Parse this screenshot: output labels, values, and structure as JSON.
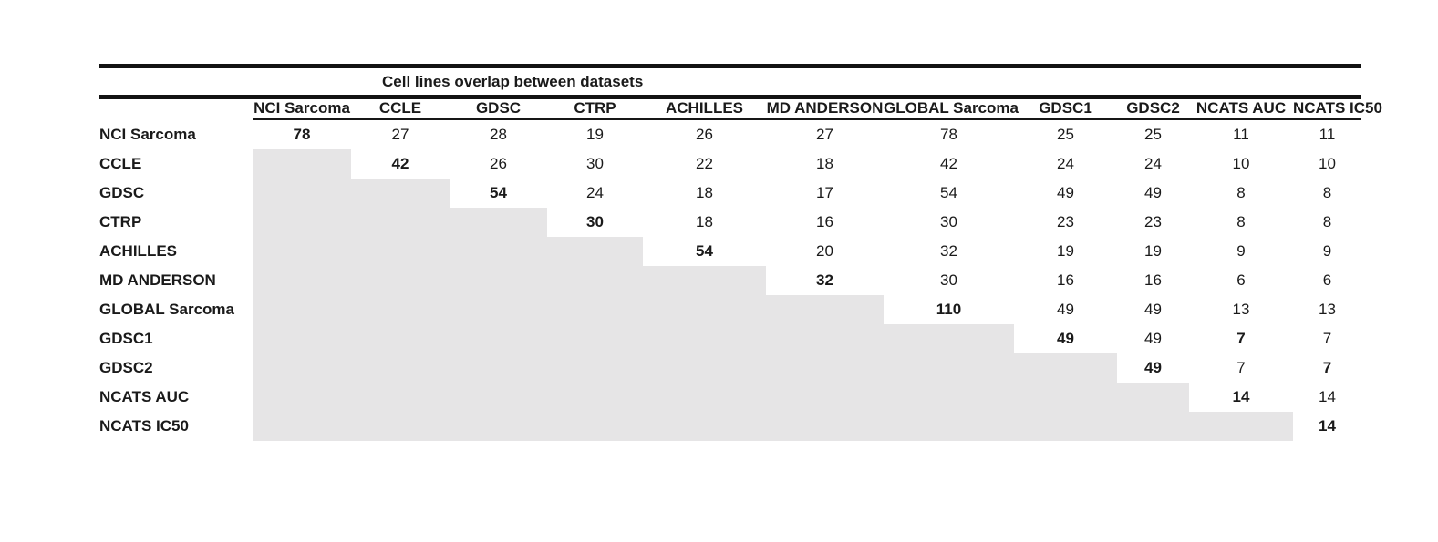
{
  "page": {
    "background_color": "#ffffff",
    "text_color": "#1a1a1a",
    "rule_color": "#121212",
    "empty_cell_color": "#e6e5e6"
  },
  "chart_data": {
    "type": "table",
    "title": "Cell lines overlap between datasets",
    "legend_position": "none",
    "grid": false,
    "columns": [
      "NCI Sarcoma",
      "CCLE",
      "GDSC",
      "CTRP",
      "ACHILLES",
      "MD ANDERSON",
      "GLOBAL Sarcoma",
      "GDSC1",
      "GDSC2",
      "NCATS AUC",
      "NCATS IC50"
    ],
    "rows": [
      {
        "label": "NCI Sarcoma",
        "values": [
          78,
          27,
          28,
          19,
          26,
          27,
          78,
          25,
          25,
          11,
          11
        ],
        "bold_cols": [
          0
        ]
      },
      {
        "label": "CCLE",
        "values": [
          null,
          42,
          26,
          30,
          22,
          18,
          42,
          24,
          24,
          10,
          10
        ],
        "bold_cols": [
          1
        ]
      },
      {
        "label": "GDSC",
        "values": [
          null,
          null,
          54,
          24,
          18,
          17,
          54,
          49,
          49,
          8,
          8
        ],
        "bold_cols": [
          2
        ]
      },
      {
        "label": "CTRP",
        "values": [
          null,
          null,
          null,
          30,
          18,
          16,
          30,
          23,
          23,
          8,
          8
        ],
        "bold_cols": [
          3
        ]
      },
      {
        "label": "ACHILLES",
        "values": [
          null,
          null,
          null,
          null,
          54,
          20,
          32,
          19,
          19,
          9,
          9
        ],
        "bold_cols": [
          4
        ]
      },
      {
        "label": "MD ANDERSON",
        "values": [
          null,
          null,
          null,
          null,
          null,
          32,
          30,
          16,
          16,
          6,
          6
        ],
        "bold_cols": [
          5
        ]
      },
      {
        "label": "GLOBAL Sarcoma",
        "values": [
          null,
          null,
          null,
          null,
          null,
          null,
          110,
          49,
          49,
          13,
          13
        ],
        "bold_cols": [
          6
        ]
      },
      {
        "label": "GDSC1",
        "values": [
          null,
          null,
          null,
          null,
          null,
          null,
          null,
          49,
          49,
          7,
          7
        ],
        "bold_cols": [
          7,
          9
        ]
      },
      {
        "label": "GDSC2",
        "values": [
          null,
          null,
          null,
          null,
          null,
          null,
          null,
          null,
          49,
          7,
          7
        ],
        "bold_cols": [
          8,
          10
        ]
      },
      {
        "label": "NCATS AUC",
        "values": [
          null,
          null,
          null,
          null,
          null,
          null,
          null,
          null,
          null,
          14,
          14
        ],
        "bold_cols": [
          9
        ]
      },
      {
        "label": "NCATS IC50",
        "values": [
          null,
          null,
          null,
          null,
          null,
          null,
          null,
          null,
          null,
          null,
          14
        ],
        "bold_cols": [
          10
        ]
      }
    ]
  }
}
